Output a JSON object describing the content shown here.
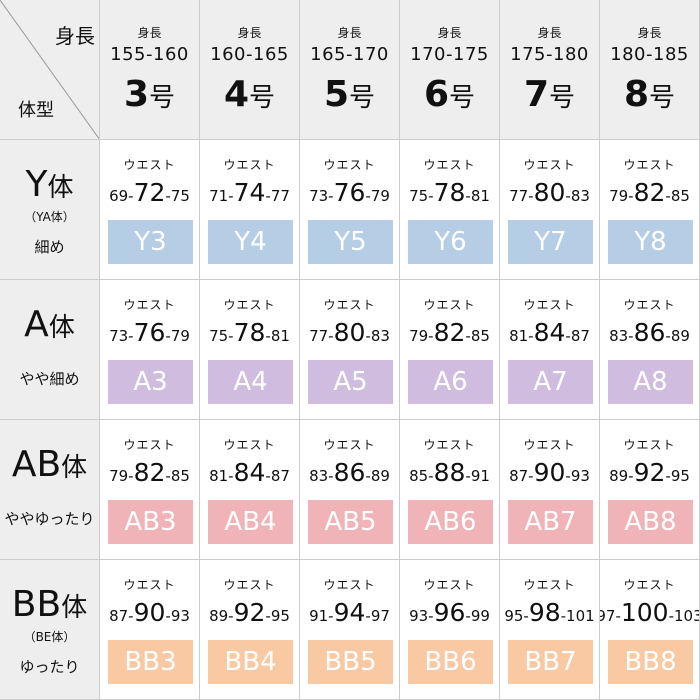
{
  "corner": {
    "height_label": "身長",
    "type_label": "体型"
  },
  "waist_label": "ウエスト",
  "size_suffix": "号",
  "columns": [
    {
      "label": "身長",
      "height": "155-160",
      "size": "3"
    },
    {
      "label": "身長",
      "height": "160-165",
      "size": "4"
    },
    {
      "label": "身長",
      "height": "165-170",
      "size": "5"
    },
    {
      "label": "身長",
      "height": "170-175",
      "size": "6"
    },
    {
      "label": "身長",
      "height": "175-180",
      "size": "7"
    },
    {
      "label": "身長",
      "height": "180-185",
      "size": "8"
    }
  ],
  "rows": [
    {
      "name": "Y",
      "suffix": "体",
      "sub": "（YA体）",
      "desc": "細め",
      "color": "#b5cde5",
      "cells": [
        {
          "low": "69-",
          "mid": "72",
          "high": "-75",
          "code": "Y3"
        },
        {
          "low": "71-",
          "mid": "74",
          "high": "-77",
          "code": "Y4"
        },
        {
          "low": "73-",
          "mid": "76",
          "high": "-79",
          "code": "Y5"
        },
        {
          "low": "75-",
          "mid": "78",
          "high": "-81",
          "code": "Y6"
        },
        {
          "low": "77-",
          "mid": "80",
          "high": "-83",
          "code": "Y7"
        },
        {
          "low": "79-",
          "mid": "82",
          "high": "-85",
          "code": "Y8"
        }
      ]
    },
    {
      "name": "A",
      "suffix": "体",
      "sub": "",
      "desc": "やや細め",
      "color": "#cfbcde",
      "cells": [
        {
          "low": "73-",
          "mid": "76",
          "high": "-79",
          "code": "A3"
        },
        {
          "low": "75-",
          "mid": "78",
          "high": "-81",
          "code": "A4"
        },
        {
          "low": "77-",
          "mid": "80",
          "high": "-83",
          "code": "A5"
        },
        {
          "low": "79-",
          "mid": "82",
          "high": "-85",
          "code": "A6"
        },
        {
          "low": "81-",
          "mid": "84",
          "high": "-87",
          "code": "A7"
        },
        {
          "low": "83-",
          "mid": "86",
          "high": "-89",
          "code": "A8"
        }
      ]
    },
    {
      "name": "AB",
      "suffix": "体",
      "sub": "",
      "desc": "ややゆったり",
      "color": "#f0b3b7",
      "cells": [
        {
          "low": "79-",
          "mid": "82",
          "high": "-85",
          "code": "AB3"
        },
        {
          "low": "81-",
          "mid": "84",
          "high": "-87",
          "code": "AB4"
        },
        {
          "low": "83-",
          "mid": "86",
          "high": "-89",
          "code": "AB5"
        },
        {
          "low": "85-",
          "mid": "88",
          "high": "-91",
          "code": "AB6"
        },
        {
          "low": "87-",
          "mid": "90",
          "high": "-93",
          "code": "AB7"
        },
        {
          "low": "89-",
          "mid": "92",
          "high": "-95",
          "code": "AB8"
        }
      ]
    },
    {
      "name": "BB",
      "suffix": "体",
      "sub": "（BE体）",
      "desc": "ゆったり",
      "color": "#f8c9a2",
      "cells": [
        {
          "low": "87-",
          "mid": "90",
          "high": "-93",
          "code": "BB3"
        },
        {
          "low": "89-",
          "mid": "92",
          "high": "-95",
          "code": "BB4"
        },
        {
          "low": "91-",
          "mid": "94",
          "high": "-97",
          "code": "BB5"
        },
        {
          "low": "93-",
          "mid": "96",
          "high": "-99",
          "code": "BB6"
        },
        {
          "low": "95-",
          "mid": "98",
          "high": "-101",
          "code": "BB7"
        },
        {
          "low": "97-",
          "mid": "100",
          "high": "-103",
          "code": "BB8"
        }
      ]
    }
  ]
}
